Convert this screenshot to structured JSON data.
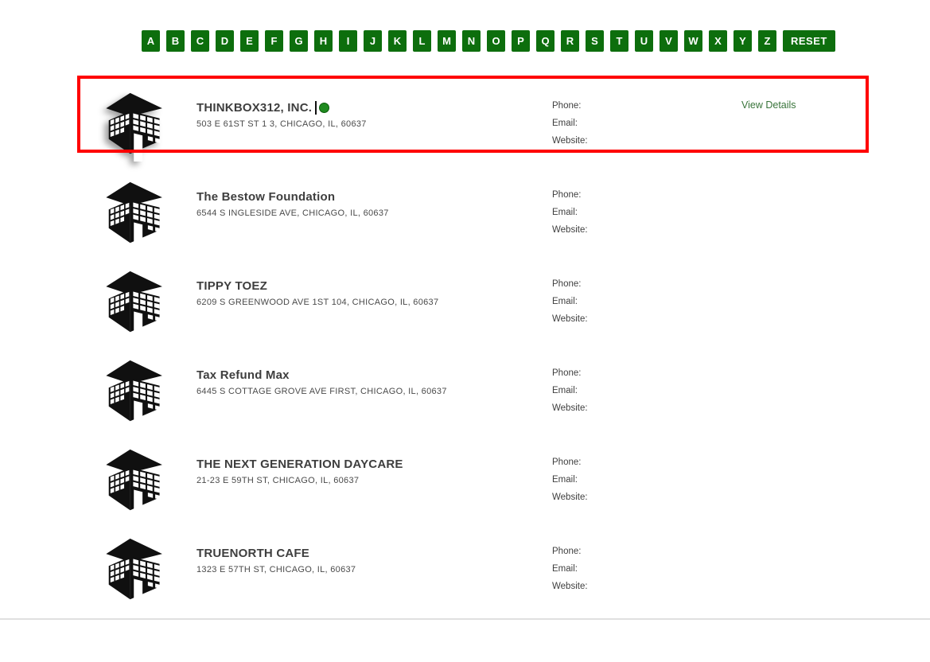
{
  "alphabet_bar": {
    "letters": [
      "A",
      "B",
      "C",
      "D",
      "E",
      "F",
      "G",
      "H",
      "I",
      "J",
      "K",
      "L",
      "M",
      "N",
      "O",
      "P",
      "Q",
      "R",
      "S",
      "T",
      "U",
      "V",
      "W",
      "X",
      "Y",
      "Z"
    ],
    "reset_label": "RESET"
  },
  "labels": {
    "phone": "Phone:",
    "email": "Email:",
    "website": "Website:",
    "view_details": "View Details"
  },
  "listings": [
    {
      "name": "THINKBOX312, INC.",
      "address": "503 E 61ST ST 1 3, CHICAGO, IL, 60637",
      "highlighted": true,
      "show_view_details": true,
      "show_cursor_marker": true
    },
    {
      "name": "The Bestow Foundation",
      "address": "6544 S INGLESIDE AVE, CHICAGO, IL, 60637",
      "highlighted": false,
      "show_view_details": false,
      "show_cursor_marker": false
    },
    {
      "name": "TIPPY TOEZ",
      "address": "6209 S GREENWOOD AVE 1ST 104, CHICAGO, IL, 60637",
      "highlighted": false,
      "show_view_details": false,
      "show_cursor_marker": false
    },
    {
      "name": "Tax Refund Max",
      "address": "6445 S COTTAGE GROVE AVE FIRST, CHICAGO, IL, 60637",
      "highlighted": false,
      "show_view_details": false,
      "show_cursor_marker": false
    },
    {
      "name": "THE NEXT GENERATION DAYCARE",
      "address": "21-23 E 59TH ST, CHICAGO, IL, 60637",
      "highlighted": false,
      "show_view_details": false,
      "show_cursor_marker": false
    },
    {
      "name": "TRUENORTH CAFE",
      "address": "1323 E 57TH ST, CHICAGO, IL, 60637",
      "highlighted": false,
      "show_view_details": false,
      "show_cursor_marker": false
    }
  ],
  "colors": {
    "button_green": "#0d6e0d",
    "highlight_border_red": "#ff0000",
    "link_green": "#38743a",
    "marker_dot_green": "#1f8a1f",
    "divider_gray": "#e0e0e0"
  }
}
